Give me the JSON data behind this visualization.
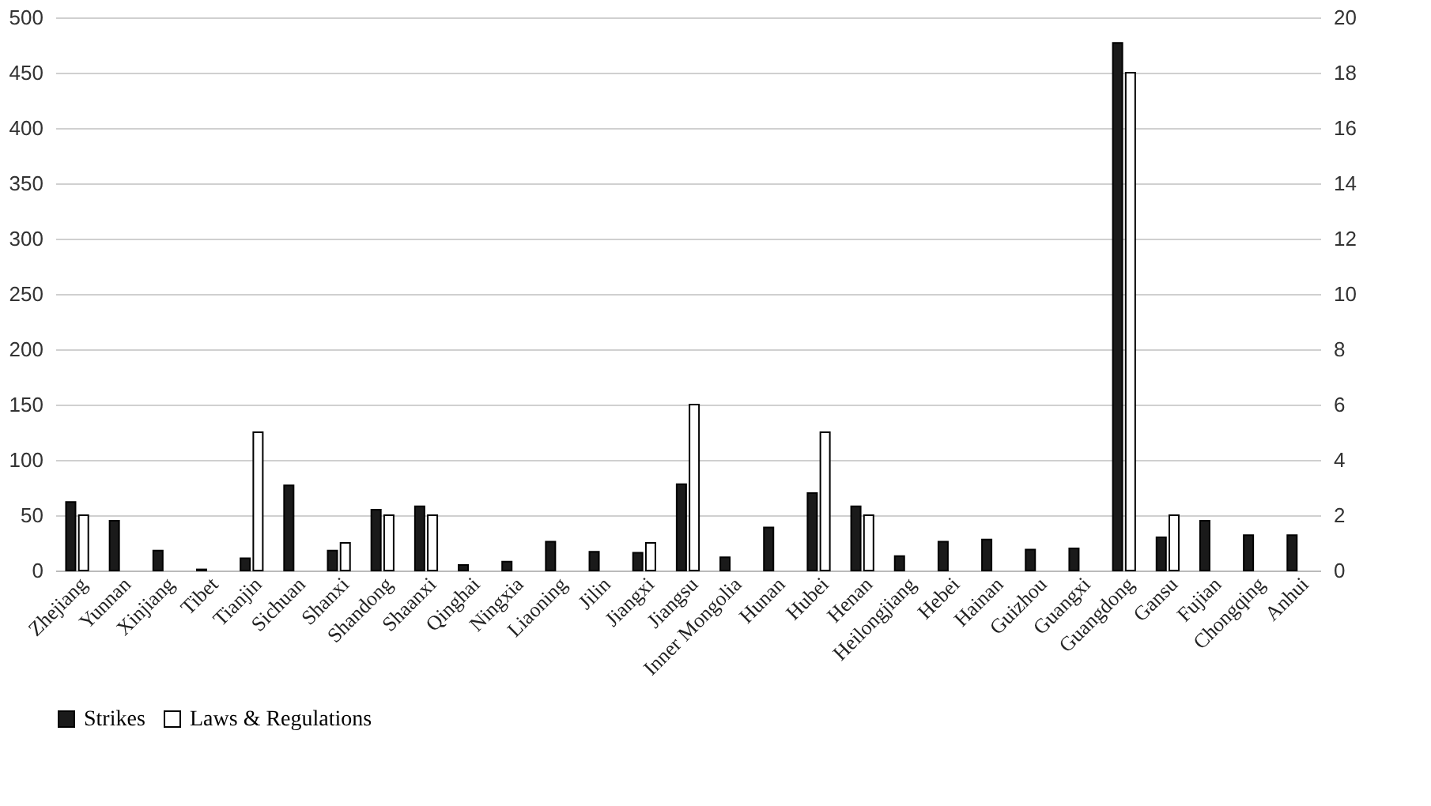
{
  "chart_data": {
    "type": "bar",
    "categories": [
      "Zhejiang",
      "Yunnan",
      "Xinjiang",
      "Tibet",
      "Tianjin",
      "Sichuan",
      "Shanxi",
      "Shandong",
      "Shaanxi",
      "Qinghai",
      "Ningxia",
      "Liaoning",
      "Jilin",
      "Jiangxi",
      "Jiangsu",
      "Inner Mongolia",
      "Hunan",
      "Hubei",
      "Henan",
      "Heilongjiang",
      "Hebei",
      "Hainan",
      "Guizhou",
      "Guangxi",
      "Guangdong",
      "Gansu",
      "Fujian",
      "Chongqing",
      "Anhui"
    ],
    "series": [
      {
        "name": "Strikes",
        "color": "#1a1a1a",
        "values": [
          62,
          45,
          18,
          1,
          11,
          77,
          18,
          55,
          58,
          5,
          8,
          26,
          17,
          16,
          78,
          12,
          39,
          70,
          58,
          13,
          26,
          28,
          19,
          20,
          477,
          30,
          45,
          32,
          32
        ]
      },
      {
        "name": "Laws & Regulations",
        "color": "#ffffff",
        "axis": "y2",
        "values": [
          2,
          null,
          null,
          null,
          5,
          null,
          1,
          2,
          2,
          null,
          null,
          null,
          null,
          1,
          6,
          null,
          null,
          5,
          2,
          null,
          null,
          null,
          null,
          null,
          18,
          2,
          null,
          null,
          null
        ]
      }
    ],
    "ylim": [
      0,
      500
    ],
    "yticks": [
      0,
      50,
      100,
      150,
      200,
      250,
      300,
      350,
      400,
      450,
      500
    ],
    "y2lim": [
      0,
      20
    ],
    "y2ticks": [
      0,
      2,
      4,
      6,
      8,
      10,
      12,
      14,
      16,
      18,
      20
    ],
    "grid": "y",
    "legend": "bottom"
  }
}
